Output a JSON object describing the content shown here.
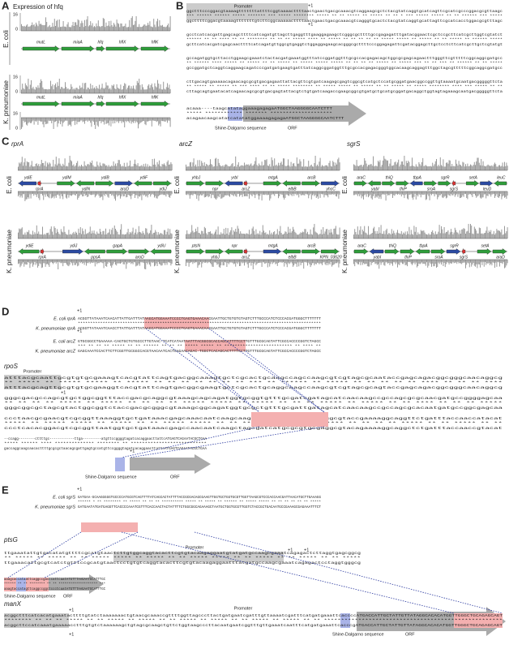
{
  "panel_a": {
    "label": "A",
    "title": "Expression of hfq",
    "species": [
      "E. coli",
      "K. pneumoniae"
    ],
    "axis_max": [
      "16",
      "16",
      "16"
    ],
    "axis_zero": [
      "0",
      "0",
      "0"
    ],
    "genes_ecoli": [
      "mutL",
      "miaA",
      "hfq",
      "hflX",
      "hflK"
    ],
    "genes_kp": [
      "mutL",
      "miaA",
      "hfq",
      "hflX",
      "hflK"
    ]
  },
  "panel_b": {
    "label": "B",
    "promoter": "Promoter",
    "tss": [
      "+1",
      "+1"
    ],
    "sd": "Shine-Dalgarno sequence",
    "orf": "ORF",
    "lines": [
      "ggctttcccggacgtaaaagtttttttattttcggtaaaacttttaactgaactgacgcaaacgtcaggaagcgctctacgtatcaggtgcatcagttcgcatcgcccggacgcgttaagc",
      "*** ****** ****** ***** ******* *** ***** ******** ***** ** ** ***** ** ***** ** ** * *** ***** ***** ** ** ****** *** *****",
      "ggcttttcggacgtaaaagtttttttgtcttcggcaaaaacttttaactgaactgacgcaaacgtcagggtgcactctacgtatcaggtgcattagttcgcatcacctggacgcgtttagc",
      "gcctcatcacgattgagcagcttttcatcagatgttagcttgaggtttgaaggagaagctcgggcgcttttgccgagagatttgatacggaactcgctccgcttcatcgcttggtcgtatct",
      "****** ** ** **** ** ** ******** ** ** ** ***** **** ** ***** ** ** ** ** ** ***** ***** ** ***** ** ** ***** ** ****** *****",
      "gcttcatcacgatcgagcaacttttcatcagatgttggcgtgaggtctggaggagaagcacgggcgcttttcccggagagattcgatacggagcttgctcctcttcatcgcttgctcgtatgt",
      "gccagatggtgcttacctggaagcgaaatctactacgatgaaatggtttatccggatggtttgcgccacgagacagctggcgcgagcagaactttgggttcgtttttcggcaggcgatgcc",
      "** ****** **** ***** ** ***** ** ** ***** ** ***** ***** ***** ** ** ** ** ***** ** ***** *** ** ** *** ** ****** ** ** *****",
      "gccggatgctcaggtcaggaagcagatcccgatgatgaagtgatttatcaggcggatggtttgcgccacgagacgggtggcacaagcaggagtttggctagcgtttttcggcaggcgatgcc",
      "cttgacagtgaaaaacagaacagcgcgtgacgagaattattacgttcgtgatcaagagcgagtcggcgtcatgctccatgcggatgaacggccggttgtaaaatgcaatgacgggggttcta",
      "** ***** ** ***** ** *** **** ** ** ***** ******** ** ***** ***** ** ***** ** ** ***** ** ***** ******** **** *** ***** ** **",
      "cttagcagtgaatacatcagaacagcgcgtgacgagtattacgtctgtgatcaagaccgaagcggcgtgatgctgcatgcggatgacaggctggtagtagaaagcaatgacgggggttcta",
      "acaaa----taagcatataggaaagagagaATGGCTAAGGGGCAATCTTT",
      "*****    ************ ******* ********************",
      "acagaacaagcatatcatatatggaaaagagagaATGGCTAAGGGGCAATCTTT"
    ]
  },
  "panel_c": {
    "label": "C",
    "species": [
      "E. coli",
      "K. pneumoniae",
      "E. coli",
      "K. pneumoniae",
      "E. coli",
      "K. pneumoniae"
    ],
    "loci": [
      {
        "name": "rprA",
        "ecoli": [
          "ydiE",
          "rprA",
          "ydiM",
          "ydiN",
          "ydiB",
          "aroD",
          "ydiF",
          "ydiJ"
        ],
        "kp": [
          "ydiE",
          "rprA",
          "ydiJ",
          "ppsA",
          "gapA",
          "aroD",
          "ydiU"
        ]
      },
      {
        "name": "arcZ",
        "ecoli": [
          "yhbJ",
          "npr",
          "yrbI",
          "arcZ",
          "mtgA",
          "elbB",
          "arcB",
          "yhcC"
        ],
        "kp": [
          "ptsN",
          "yhbJ",
          "npr",
          "arcZ",
          "mtgA",
          "elbB",
          "arcB",
          "KPN_03620"
        ]
      },
      {
        "name": "sgrS",
        "ecoli": [
          "araC",
          "yabI",
          "thiQ",
          "thiP",
          "tbpA",
          "sroA",
          "sgrR",
          "sgrS",
          "setA",
          "leuD",
          "leuC"
        ],
        "kp": [
          "araC",
          "yabI",
          "thiQ",
          "thiP",
          "tbpA",
          "sroA",
          "sgrR",
          "sgrS",
          "setA",
          "araD"
        ]
      }
    ]
  },
  "panel_d": {
    "label": "D",
    "rprA_labels": [
      "E. coli rprA",
      "K. pneumoniae rprA"
    ],
    "rprA_tss": "+1",
    "rprA_lines": [
      "ACGGTTATAAATCAACATTATTGATTTATAAGCATGGAAATCCCCTGAGTGAAACAACGAATTGCTGTGTGTAGTCTTTGCCCATCTCCCACGATGGGCTTTTTTT",
      "**************************************************************************************************",
      "ACGGTTATAAATCAACCTTATTGATTTATAAGCATGGAAATCCCCTGAGTGAAACAACGAATTGCTGTGTGTAGTCTTTGCCCATCTCCCACGATGGGCTTTTTTT"
    ],
    "arcZ_labels": [
      "E. coli arcZ",
      "K. pneumoniae arcZ"
    ],
    "arcZ_tss": "+1",
    "arcZ_lines": [
      "GTGCGGCCTGAAAAA-CAGTGCTGTGCCCTTGTAAC-TCATCATAATAATTTACGGCGCACCAGCATTTTCCTTGTTTGCGCAGTATTCGCCACCCCGGTCTAGCC",
      "*** ** ** ** ***** ** ** ****** ** ** ** ***** ***** ** ************************** ** **** **",
      "GAGCAAATCCACTTCTTCGGTTGCGGCCACGTAACAATCACTCAGAACAGAC-TGGCTCACAGCACTTTTCCTTGTTTGCGCAGTATTCGCCACCCCGGTCTAGCC"
    ],
    "rpoS_title": "rpoS",
    "rpoS_promoter": "Promoter",
    "rpoS_tss": [
      "+1",
      "+1"
    ],
    "rpoS_sd": "Shine-Dalgarno sequence",
    "rpoS_orf": "ORF",
    "rpoS_lines": [
      "atttacgcaattgcgtgtgcgaaagtcacgtattcagtgacggcaaagtgctcgcactgcaagccagccaagcgtcgtagcgcaataccgagcagacggcgggcaacaggcg",
      "** ***** ** ***** ***** ** ***** ** ** ** ** ** ** ** *** ** ****** ** ***** ** ** ** ** ** **** ** ** ** ****",
      "atttacgcagttgcgtgtgcgaaggtcacgtattcagtgacggcgaagtgctcgcactgcaggcaagccaagcgtcgtagcgcagtaccgagcagacggcgggcaacaggcg",
      "gggcgacgccagcgtgctggcggtttaccgacgcaggcgtaaagcagcagatggtgcggtgtttgcgatcgatagcatcaacaagccgccagcgcgcaacgatgccggggagcaa",
      "** ** ** ** ***** ** ***** ** ** ** ** ***** ***** ** ***** ** ** ** ***** ** ***** ** ** **** ** ** ** *****",
      "gggcggcgctagcgtactggcggtctaccgacgcgggcgtaaagcggcagatggtgcgctgtttgcgattgatagcatcaacaagccgccagcgcacaatgatgccggcgagcaa",
      "ccctaacgcgaacgtcgcggttaaaggtgctgataaacgagcaaacaatcaagcaagcgatcatgcgagtgcgaggcgtaccgaaaaggcaggttctgatttaccaaccatacat",
      "***** ** ***** ***** ** ***** ** ** ***** ***** ** ** ** ** ** ***** ** ***** ** ** ** ** ***** ** ** ***** ** **",
      "ccctcacacggacgtcgcggttaatggtgctgataaacgagccaacaatcaagctagcgatcatgcgcgtgcgaggcgtacagaaaaggcaggctctgatttaccaaccgtacat",
      "--ccagg--------cttttgc------------ttga---------atgttccggggtagatcacaggaacttattcATGAGTCAGAATACGCTGAA",
      "  *****        ******             ****         ************** ******** ** ***************************",
      "gaccaggcaagcaacacttttgcgcgctaacagcgattgagtgccatgttccggggtagatcacaggaacttattcATGAGTCAGAATACGCTGAA"
    ]
  },
  "panel_e": {
    "label": "E",
    "sgrS_labels": [
      "E. coli sgrS",
      "K. pneumoniae sgrS"
    ],
    "sgrS_tss": "+1",
    "sgrS_lines": [
      "GATGAA-GCAAGGGGGTGCCCCATGCGTCAGTTTTATCAGCACTATTTTACCGCGACAGCGAAGTTGGTGCTGGTGCGTTGGTTAAGCGTCCCACCAACGATTAACATGCTTGAAAGG",
      "****** * ** ******** ** ***** ** ** ** ********** ***** ** ***** ** ****** ** ***** ***** ** ** ** ** ** ** *****",
      "GATGAATATGATGAGGTTCACCCCAAATCGTTTCACCAACTACTATTTTCTGGCGGCAGAAAGCTAATGCTGGTGCGTTGGTCTACCGCTGACAATGCCGAAAGCGAGAAATTTCT"
    ],
    "ptsG_title": "ptsG",
    "ptsG_promoter": "Promoter",
    "ptsG_tss": [
      "+1",
      "+1"
    ],
    "ptsG_sd": "Shine-Dalgarno sequence",
    "ptsG_orf": "ORF",
    "ptsG_lines": [
      "ttgaaatattgtgacatatgttttcgcatgtaactcttgtggcaggtacacttcgtgtacaagaggaatgtatgatgccaagcgaaatcagagactcttaggtgagcggcg",
      "** ***** ** ***** ** ** ***** ***** ** ***** ** ** ***** ***** ** ** ***** ** ** ***** ** ** *****",
      "ttgaaacattgcgtcatctgtttccgcatgtaactcctgtgtcaggtacacttcgtgtacaagaggaatttatgatgccaagcgaaatcagagactcctaggtgggcg",
      "aaagcaccataattcaggccgacccattcaatATGTTTAAGAATGCATTTGC",
      "****** ** ** ******** ** ** ******************** ***",
      "aaagtaccatagttcaggccggctccctcaatATGTTTAAGAATGCATTTGC"
    ],
    "manX_title": "manX",
    "manX_promoter": "Promoter",
    "manX_tss": [
      "+1",
      "+1"
    ],
    "manX_sd": "Shine-Dalgarno sequence",
    "manX_orf": "ORF",
    "manX_lines": [
      "acggctttcatcacatgaaatacttttgtatctaaaaaaactgtaacgcaaaccgttttggttagcccttactgatgaatcgatttgttaaaatcgatttcatgatgaaattcaccccATGACCATTGCTATTGTTATAGGCACACATGGTTGGGCTGCAGAGCAGT",
      "******** ** ** ** ***** ** ** ***** ** ***** ** ** ***** ** ***** ** ** ***** ** ***** ** ** ****************************************************",
      "acggcttccatcaaatgaaaaacctttgtgtctaaaaaagctgtagcgcaagctgttctggtaagcccttacaatgaatcggtttgttgaaatcaatttcatgatgaaattcacccgATGACCATTGCTATTGTTATAGGCACACATGGTTGGGCTGCAGAGCAGT"
    ]
  }
}
